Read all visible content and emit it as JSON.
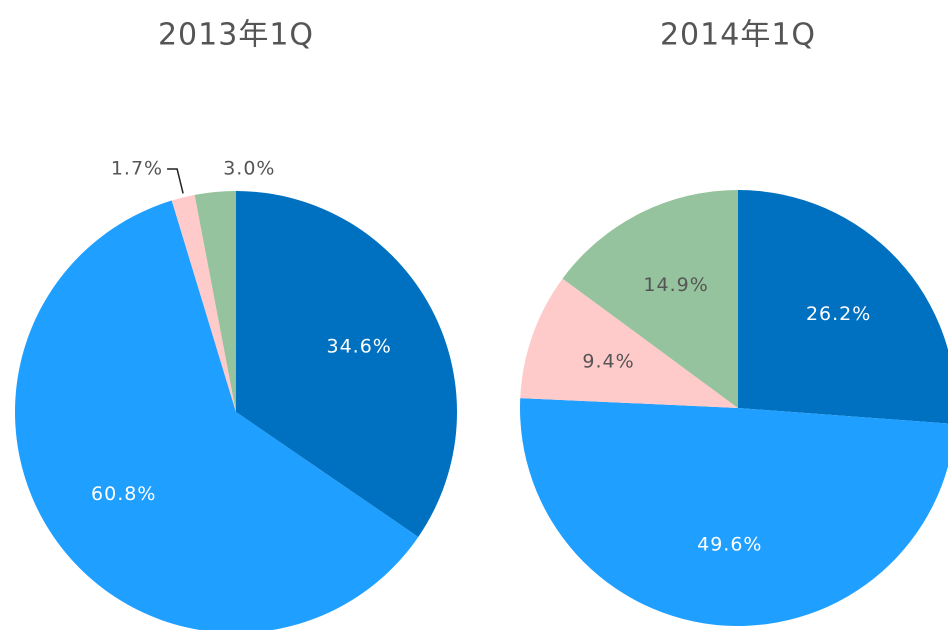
{
  "chart_data": [
    {
      "type": "pie",
      "title": "2013年1Q",
      "values": [
        34.6,
        60.8,
        1.7,
        3.0
      ],
      "value_labels": [
        "34.6%",
        "60.8%",
        "1.7%",
        "3.0%"
      ],
      "colors": [
        "#0070c0",
        "#1f9fff",
        "#ffcaca",
        "#95c39d"
      ]
    },
    {
      "type": "pie",
      "title": "2014年1Q",
      "values": [
        26.2,
        49.6,
        9.4,
        14.9
      ],
      "value_labels": [
        "26.2%",
        "49.6%",
        "9.4%",
        "14.9%"
      ],
      "colors": [
        "#0070c0",
        "#1f9fff",
        "#ffcaca",
        "#95c39d"
      ]
    }
  ]
}
